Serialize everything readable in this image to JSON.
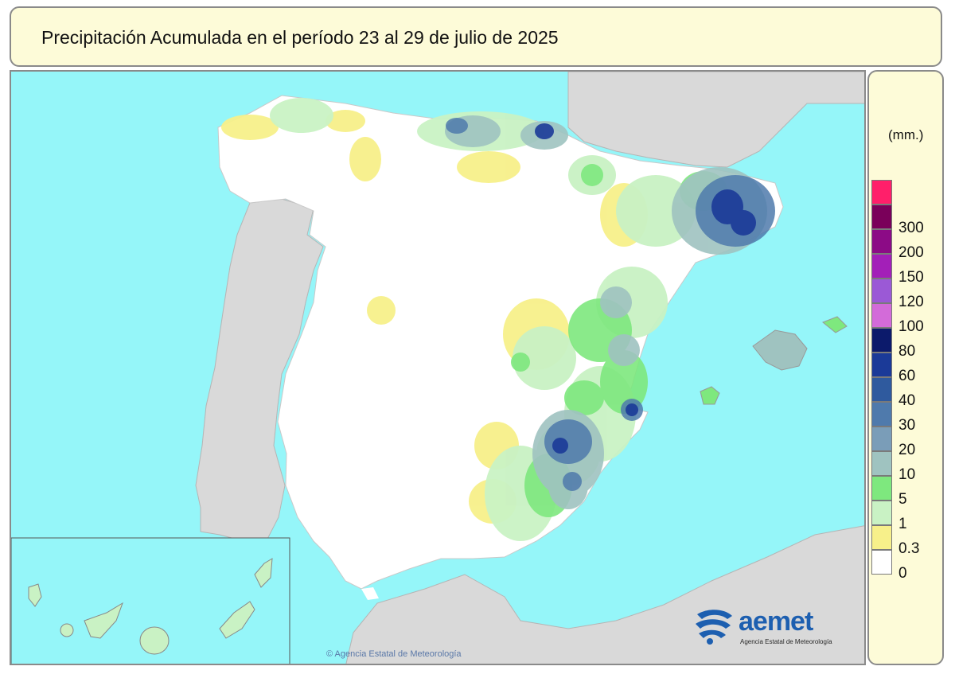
{
  "title": "Precipitación Acumulada en el período 23 al 29 de julio de 2025",
  "legend": {
    "unit": "(mm.)",
    "items": [
      {
        "label": "",
        "color": "#ff1f6a"
      },
      {
        "label": "300",
        "color": "#7a005a"
      },
      {
        "label": "200",
        "color": "#8c0b86"
      },
      {
        "label": "150",
        "color": "#a31fb8"
      },
      {
        "label": "120",
        "color": "#9b59d6"
      },
      {
        "label": "100",
        "color": "#d36bd9"
      },
      {
        "label": "80",
        "color": "#0c1a6b"
      },
      {
        "label": "60",
        "color": "#1b3a98"
      },
      {
        "label": "40",
        "color": "#2f5a9e"
      },
      {
        "label": "30",
        "color": "#4f7aac"
      },
      {
        "label": "20",
        "color": "#7a9db8"
      },
      {
        "label": "10",
        "color": "#9fc3c0"
      },
      {
        "label": "5",
        "color": "#7ee87e"
      },
      {
        "label": "1",
        "color": "#c9f2c4"
      },
      {
        "label": "0.3",
        "color": "#f7f08a"
      },
      {
        "label": "0",
        "color": "#ffffff"
      }
    ]
  },
  "logo": {
    "text": "aemet",
    "subtitle": "Agencia Estatal de Meteorología"
  },
  "copyright": "© Agencia Estatal de Meteorología",
  "colors": {
    "sea": "#95f6f9",
    "foreign_land": "#d9d9d9",
    "spain_land": "#ffffff",
    "frame": "#8a8a8a",
    "panel_bg": "#fdfbd8"
  }
}
